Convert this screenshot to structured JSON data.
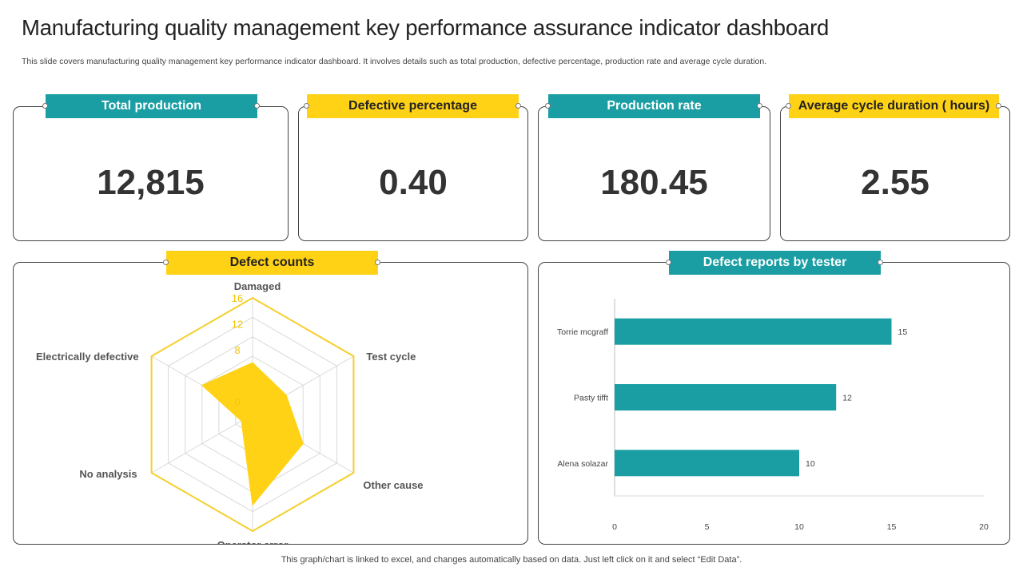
{
  "header": {
    "title": "Manufacturing quality management key performance assurance indicator dashboard",
    "subtitle": "This slide covers manufacturing quality management key performance indicator dashboard. It involves details such as total production, defective percentage, production rate and average cycle duration."
  },
  "kpis": [
    {
      "label": "Total production",
      "value": "12,815"
    },
    {
      "label": "Defective percentage",
      "value": "0.40"
    },
    {
      "label": "Production rate",
      "value": "180.45"
    },
    {
      "label": "Average cycle duration ( hours)",
      "value": "2.55"
    }
  ],
  "panels": {
    "defect_counts": {
      "label": "Defect counts"
    },
    "defect_reports": {
      "label": "Defect reports by tester"
    }
  },
  "footer": {
    "note": "This graph/chart is linked to excel,  and changes automatically based on data. Just left click on it and select “Edit Data”."
  },
  "colors": {
    "teal": "#1a9ea3",
    "yellow": "#ffd216",
    "radar_outline": "#f5cf2e",
    "grid": "#d9d9d9"
  },
  "chart_data": [
    {
      "type": "radar",
      "categories": [
        "Damaged",
        "Test cycle",
        "Other cause",
        "Operator  error",
        "No analysis",
        "Electrically defective"
      ],
      "values": [
        6,
        4,
        7,
        12,
        0,
        7
      ],
      "outline_value": 16,
      "ticks": [
        0,
        8,
        12,
        16
      ],
      "rmin": -2,
      "rmax": 16,
      "grid_levels": 6
    },
    {
      "type": "bar",
      "orientation": "horizontal",
      "categories": [
        "Torrie mcgraff",
        "Pasty tifft",
        "Alena solazar"
      ],
      "values": [
        15,
        12,
        10
      ],
      "xlim": [
        0,
        20
      ],
      "xticks": [
        0,
        5,
        10,
        15,
        20
      ]
    }
  ]
}
